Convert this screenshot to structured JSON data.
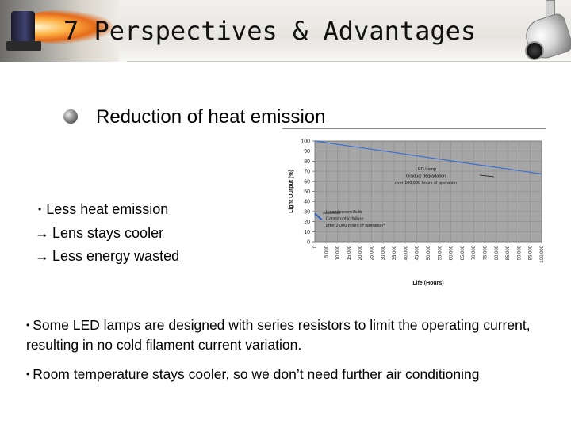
{
  "title": "7 Perspectives & Advantages",
  "subtitle": "Reduction of heat emission",
  "left_bullet": {
    "text": "Less heat emission",
    "arrows": [
      "Lens stays cooler",
      "Less energy wasted"
    ]
  },
  "bottom_bullets": [
    "Some LED lamps are designed with series resistors to limit the operating current, resulting in no cold filament current variation.",
    "Room temperature stays cooler, so we don’t need further air conditioning"
  ],
  "colors": {
    "plot_bg": "#a6a6a6",
    "led_line": "#3b6fd1",
    "incandescent_line": "#2b5fc4"
  },
  "chart_data": {
    "type": "line",
    "xlabel": "Life (Hours)",
    "ylabel": "Light Output (%)",
    "xlim": [
      0,
      100000
    ],
    "ylim": [
      0,
      100
    ],
    "x_ticks": [
      "0",
      "5,000",
      "10,000",
      "15,000",
      "20,000",
      "25,000",
      "30,000",
      "35,000",
      "40,000",
      "45,000",
      "50,000",
      "55,000",
      "60,000",
      "65,000",
      "70,000",
      "75,000",
      "80,000",
      "85,000",
      "90,000",
      "95,000",
      "100,000"
    ],
    "y_ticks": [
      "0",
      "10",
      "20",
      "30",
      "40",
      "50",
      "60",
      "70",
      "80",
      "90",
      "100"
    ],
    "grid": true,
    "series": [
      {
        "x": [
          0,
          10000,
          20000,
          30000,
          40000,
          50000,
          60000,
          70000,
          80000,
          90000,
          100000
        ],
        "y": [
          100,
          96.8,
          93.5,
          90.3,
          87,
          83.7,
          80.4,
          77.1,
          73.9,
          70.6,
          67.3
        ]
      },
      {
        "x": [
          0,
          500,
          1000,
          1500,
          2000,
          2500,
          3000
        ],
        "y": [
          28,
          27,
          26,
          25,
          24,
          23,
          22
        ]
      }
    ],
    "annotations": [
      {
        "lines": [
          "LED Lamp",
          "Gradual degradation",
          "over 100,000 hours of operation"
        ]
      },
      {
        "lines": [
          "Incandescent Bulb",
          "Catastrophic failure",
          "after 2,000 hours of operation*"
        ]
      }
    ]
  }
}
